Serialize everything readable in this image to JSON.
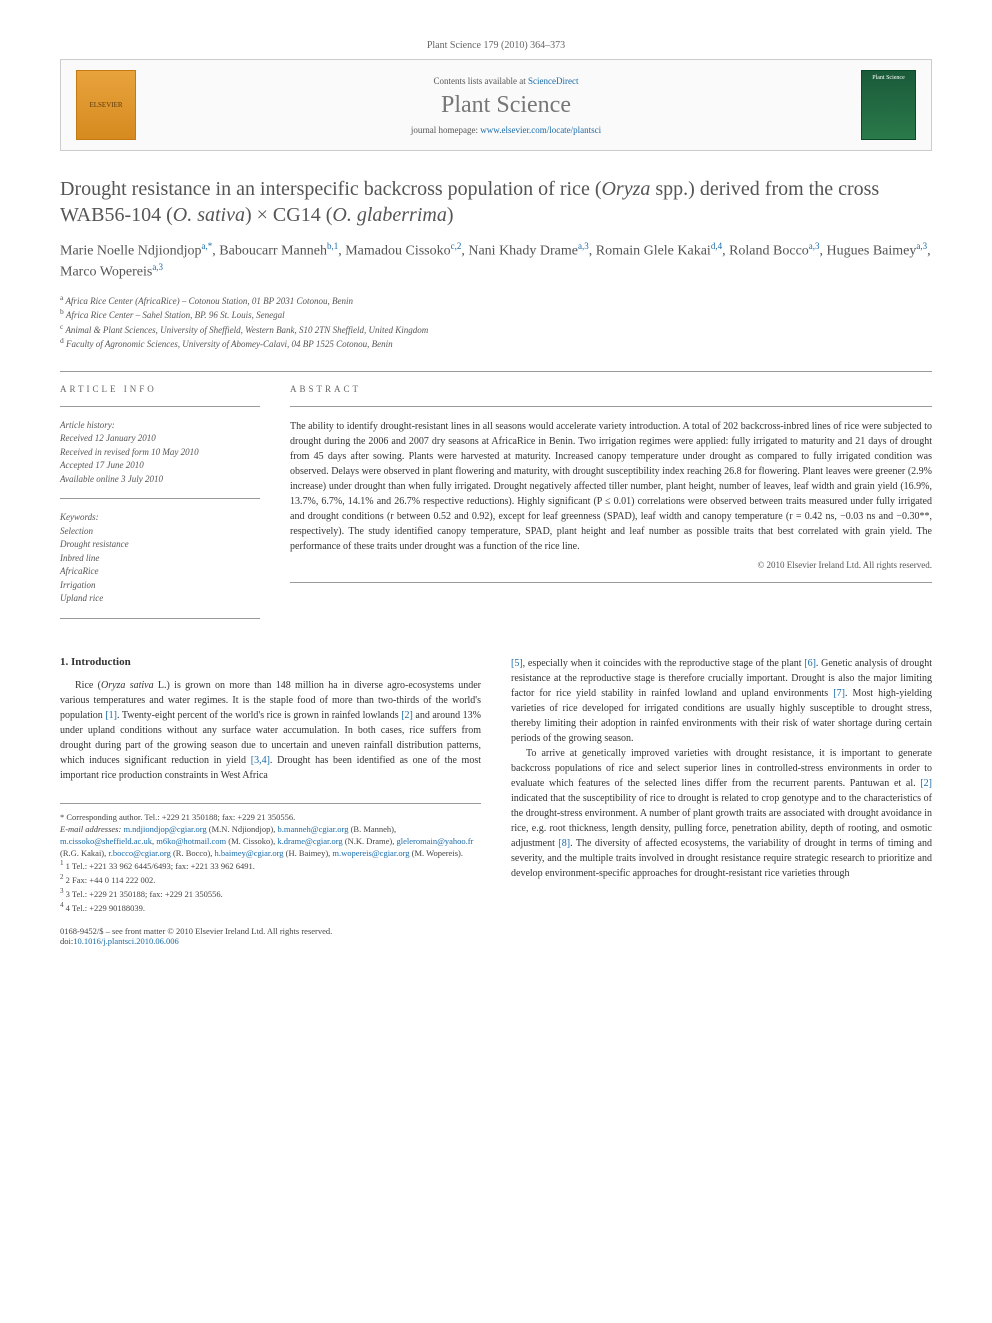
{
  "page_header": "Plant Science 179 (2010) 364–373",
  "banner": {
    "contents_prefix": "Contents lists available at ",
    "contents_link": "ScienceDirect",
    "journal_name": "Plant Science",
    "homepage_prefix": "journal homepage: ",
    "homepage_url": "www.elsevier.com/locate/plantsci",
    "elsevier_label": "ELSEVIER",
    "cover_label": "Plant Science"
  },
  "title_html": "Drought resistance in an interspecific backcross population of rice (<em>Oryza</em> spp.) derived from the cross WAB56-104 (<em>O. sativa</em>) × CG14 (<em>O. glaberrima</em>)",
  "authors_html": "Marie Noelle Ndjiondjop<sup>a,*</sup>, Baboucarr Manneh<sup>b,1</sup>, Mamadou Cissoko<sup>c,2</sup>, Nani Khady Drame<sup>a,3</sup>, Romain Glele Kakai<sup>d,4</sup>, Roland Bocco<sup>a,3</sup>, Hugues Baimey<sup>a,3</sup>, Marco Wopereis<sup>a,3</sup>",
  "affiliations": [
    "a Africa Rice Center (AfricaRice) – Cotonou Station, 01 BP 2031 Cotonou, Benin",
    "b Africa Rice Center – Sahel Station, BP. 96 St. Louis, Senegal",
    "c Animal & Plant Sciences, University of Sheffield, Western Bank, S10 2TN Sheffield, United Kingdom",
    "d Faculty of Agronomic Sciences, University of Abomey-Calavi, 04 BP 1525 Cotonou, Benin"
  ],
  "article_info_label": "ARTICLE INFO",
  "abstract_label": "ABSTRACT",
  "history": {
    "label": "Article history:",
    "lines": [
      "Received 12 January 2010",
      "Received in revised form 10 May 2010",
      "Accepted 17 June 2010",
      "Available online 3 July 2010"
    ]
  },
  "keywords": {
    "label": "Keywords:",
    "items": [
      "Selection",
      "Drought resistance",
      "Inbred line",
      "AfricaRice",
      "Irrigation",
      "Upland rice"
    ]
  },
  "abstract_text": "The ability to identify drought-resistant lines in all seasons would accelerate variety introduction. A total of 202 backcross-inbred lines of rice were subjected to drought during the 2006 and 2007 dry seasons at AfricaRice in Benin. Two irrigation regimes were applied: fully irrigated to maturity and 21 days of drought from 45 days after sowing. Plants were harvested at maturity. Increased canopy temperature under drought as compared to fully irrigated condition was observed. Delays were observed in plant flowering and maturity, with drought susceptibility index reaching 26.8 for flowering. Plant leaves were greener (2.9% increase) under drought than when fully irrigated. Drought negatively affected tiller number, plant height, number of leaves, leaf width and grain yield (16.9%, 13.7%, 6.7%, 14.1% and 26.7% respective reductions). Highly significant (P ≤ 0.01) correlations were observed between traits measured under fully irrigated and drought conditions (r between 0.52 and 0.92), except for leaf greenness (SPAD), leaf width and canopy temperature (r = 0.42 ns, −0.03 ns and −0.30**, respectively). The study identified canopy temperature, SPAD, plant height and leaf number as possible traits that best correlated with grain yield. The performance of these traits under drought was a function of the rice line.",
  "copyright": "© 2010 Elsevier Ireland Ltd. All rights reserved.",
  "body": {
    "heading": "1. Introduction",
    "col1_html": "Rice (<em>Oryza sativa</em> L.) is grown on more than 148 million ha in diverse agro-ecosystems under various temperatures and water regimes. It is the staple food of more than two-thirds of the world's population <span class='ref'>[1]</span>. Twenty-eight percent of the world's rice is grown in rainfed lowlands <span class='ref'>[2]</span> and around 13% under upland conditions without any surface water accumulation. In both cases, rice suffers from drought during part of the growing season due to uncertain and uneven rainfall distribution patterns, which induces significant reduction in yield <span class='ref'>[3,4]</span>. Drought has been identified as one of the most important rice production constraints in West Africa",
    "col2_html": "<span class='ref'>[5]</span>, especially when it coincides with the reproductive stage of the plant <span class='ref'>[6]</span>. Genetic analysis of drought resistance at the reproductive stage is therefore crucially important. Drought is also the major limiting factor for rice yield stability in rainfed lowland and upland environments <span class='ref'>[7]</span>. Most high-yielding varieties of rice developed for irrigated conditions are usually highly susceptible to drought stress, thereby limiting their adoption in rainfed environments with their risk of water shortage during certain periods of the growing season.",
    "col2b_html": "To arrive at genetically improved varieties with drought resistance, it is important to generate backcross populations of rice and select superior lines in controlled-stress environments in order to evaluate which features of the selected lines differ from the recurrent parents. Pantuwan et al. <span class='ref'>[2]</span> indicated that the susceptibility of rice to drought is related to crop genotype and to the characteristics of the drought-stress environment. A number of plant growth traits are associated with drought avoidance in rice, e.g. root thickness, length density, pulling force, penetration ability, depth of rooting, and osmotic adjustment <span class='ref'>[8]</span>. The diversity of affected ecosystems, the variability of drought in terms of timing and severity, and the multiple traits involved in drought resistance require strategic research to prioritize and develop environment-specific approaches for drought-resistant rice varieties through"
  },
  "footer": {
    "corresponding": "* Corresponding author. Tel.: +229 21 350188; fax: +229 21 350556.",
    "emails_label": "E-mail addresses: ",
    "emails_html": "<a>m.ndjiondjop@cgiar.org</a> (M.N. Ndjiondjop), <a>b.manneh@cgiar.org</a> (B. Manneh), <a>m.cissoko@sheffield.ac.uk</a>, <a>m6ko@hotmail.com</a> (M. Cissoko), <a>k.drame@cgiar.org</a> (N.K. Drame), <a>gleleromain@yahoo.fr</a> (R.G. Kakai), <a>r.bocco@cgiar.org</a> (R. Bocco), <a>h.baimey@cgiar.org</a> (H. Baimey), <a>m.wopereis@cgiar.org</a> (M. Wopereis).",
    "notes": [
      "1 Tel.: +221 33 962 6445/6493; fax: +221 33 962 6491.",
      "2 Fax: +44 0 114 222 002.",
      "3 Tel.: +229 21 350188; fax: +229 21 350556.",
      "4 Tel.: +229 90188039."
    ]
  },
  "doi": {
    "line1": "0168-9452/$ – see front matter © 2010 Elsevier Ireland Ltd. All rights reserved.",
    "line2_prefix": "doi:",
    "line2_link": "10.1016/j.plantsci.2010.06.006"
  },
  "colors": {
    "link": "#1a6ba8",
    "text": "#333333",
    "muted": "#666666",
    "border": "#999999"
  }
}
